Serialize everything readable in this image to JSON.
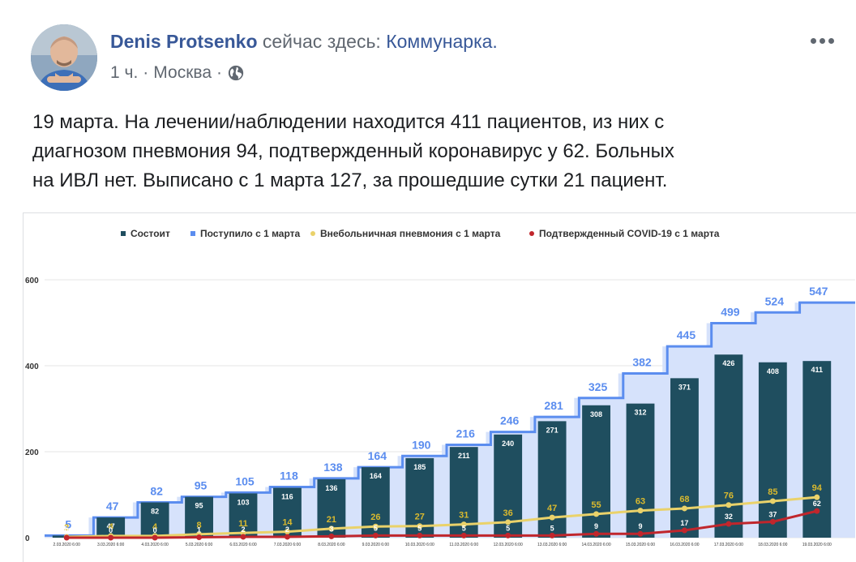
{
  "post": {
    "author": "Denis Protsenko",
    "verb": "сейчас здесь:",
    "place": "Коммунарка.",
    "time": "1 ч.",
    "location": "Москва",
    "separator": "·",
    "more_icon": "more-options-icon",
    "privacy_icon": "globe-icon",
    "text_lines": [
      "19 марта. На лечении/наблюдении находится 411 пациентов, из них с",
      "диагнозом пневмония 94, подтвержденный коронавирус у 62. Больных",
      "на ИВЛ нет. Выписано с 1 марта 127, за прошедшие сутки 21 пациент."
    ]
  },
  "colors": {
    "facebook_blue": "#385898",
    "meta_grey": "#606770",
    "bar": "#1f4e5f",
    "received": "#5b8def",
    "received_fill": "#d6e2fb",
    "pneumonia": "#ead26a",
    "covid": "#c0262c"
  },
  "chart_data": {
    "type": "bar",
    "legend": [
      "Состоит",
      "Поступило с 1 марта",
      "Внебольничная пневмония с 1 марта",
      "Подтвержденный COVID-19 с 1 марта"
    ],
    "legend_position": "top-center",
    "categories": [
      "2.03.2020 6:00",
      "3.03.2020 6:00",
      "4.03.2020 6:00",
      "5.03.2020 6:00",
      "6.03.2020 6:00",
      "7.03.2020 6:00",
      "8.03.2020 6:00",
      "9.03.2020 6:00",
      "10.03.2020 6:00",
      "11.03.2020 6:00",
      "12.03.2020 6:00",
      "13.03.2020 6:00",
      "14.03.2020 6:00",
      "15.03.2020 6:00",
      "16.03.2020 6:00",
      "17.03.2020 6:00",
      "18.03.2020 6:00",
      "19.03.2020 6:00"
    ],
    "series": [
      {
        "name": "Состоит",
        "type": "bar",
        "values": [
          5,
          47,
          82,
          95,
          103,
          116,
          136,
          164,
          185,
          211,
          240,
          271,
          308,
          312,
          371,
          426,
          408,
          411
        ]
      },
      {
        "name": "Поступило с 1 марта",
        "type": "step-area",
        "values": [
          5,
          47,
          82,
          95,
          105,
          118,
          138,
          164,
          190,
          216,
          246,
          281,
          325,
          382,
          445,
          499,
          524,
          547
        ]
      },
      {
        "name": "Внебольничная пневмония с 1 марта",
        "type": "line",
        "values": [
          2,
          4,
          4,
          8,
          11,
          14,
          21,
          26,
          27,
          31,
          36,
          47,
          55,
          63,
          68,
          76,
          85,
          94
        ]
      },
      {
        "name": "Подтвержденный COVID-19 с 1 марта",
        "type": "line",
        "values": [
          0,
          0,
          0,
          1,
          2,
          2,
          3,
          5,
          5,
          5,
          5,
          5,
          9,
          9,
          17,
          32,
          37,
          62
        ]
      }
    ],
    "ylim": [
      0,
      600
    ],
    "yticks": [
      0,
      200,
      400,
      600
    ],
    "grid": true
  }
}
